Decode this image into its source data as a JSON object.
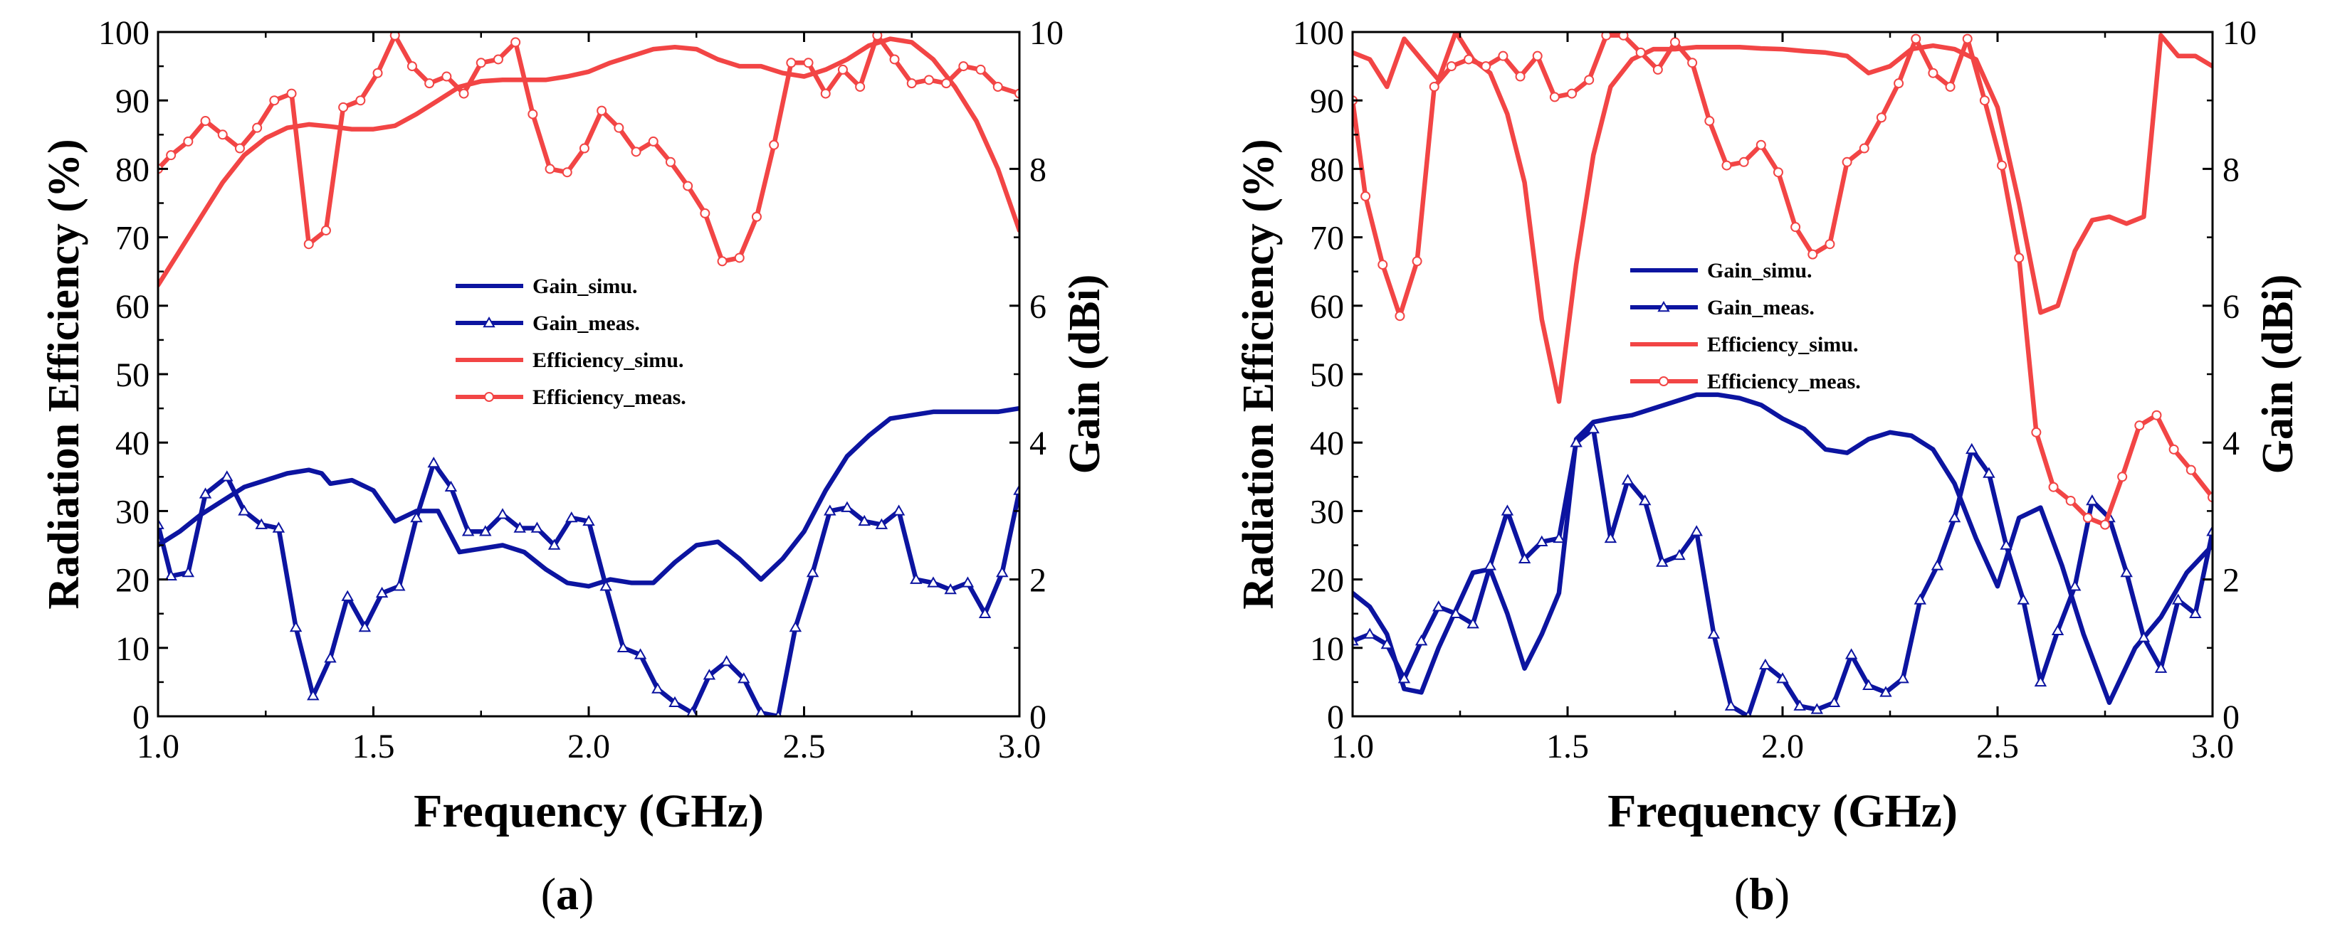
{
  "colors": {
    "gain": "#0c14a0",
    "efficiency": "#f24545",
    "axis": "#000000"
  },
  "chart_data": [
    {
      "panel_label": "a",
      "type": "line",
      "xlabel": "Frequency (GHz)",
      "ylabel_left": "Radiation Efficiency (%)",
      "ylabel_right": "Gain (dBi)",
      "xlim": [
        1.0,
        3.0
      ],
      "ylim_left": [
        0,
        100
      ],
      "ylim_right": [
        0,
        10
      ],
      "xticks": [
        "1.0",
        "1.5",
        "2.0",
        "2.5",
        "3.0"
      ],
      "yticks_left": [
        "0",
        "10",
        "20",
        "30",
        "40",
        "50",
        "60",
        "70",
        "80",
        "90",
        "100"
      ],
      "yticks_right": [
        "0",
        "2",
        "4",
        "6",
        "8",
        "10"
      ],
      "legend": [
        "Gain_simu.",
        "Gain_meas.",
        "Efficiency_simu.",
        "Efficiency_meas."
      ],
      "series": [
        {
          "name": "Gain_simu.",
          "axis": "right",
          "marker": "none",
          "color": "gain",
          "x": [
            1.0,
            1.05,
            1.1,
            1.15,
            1.2,
            1.25,
            1.3,
            1.35,
            1.38,
            1.4,
            1.45,
            1.5,
            1.55,
            1.6,
            1.65,
            1.7,
            1.75,
            1.8,
            1.85,
            1.9,
            1.95,
            2.0,
            2.05,
            2.1,
            2.15,
            2.2,
            2.25,
            2.3,
            2.35,
            2.4,
            2.45,
            2.5,
            2.55,
            2.6,
            2.65,
            2.7,
            2.75,
            2.8,
            2.85,
            2.9,
            2.95,
            3.0
          ],
          "y": [
            2.5,
            2.7,
            2.95,
            3.15,
            3.35,
            3.45,
            3.55,
            3.6,
            3.55,
            3.4,
            3.45,
            3.3,
            2.85,
            3.0,
            3.0,
            2.4,
            2.45,
            2.5,
            2.4,
            2.15,
            1.95,
            1.9,
            2.0,
            1.95,
            1.95,
            2.25,
            2.5,
            2.55,
            2.3,
            2.0,
            2.3,
            2.7,
            3.3,
            3.8,
            4.1,
            4.35,
            4.4,
            4.45,
            4.45,
            4.45,
            4.45,
            4.5
          ]
        },
        {
          "name": "Gain_meas.",
          "axis": "right",
          "marker": "triangle",
          "color": "gain",
          "x": [
            1.0,
            1.03,
            1.07,
            1.11,
            1.16,
            1.2,
            1.24,
            1.28,
            1.32,
            1.36,
            1.4,
            1.44,
            1.48,
            1.52,
            1.56,
            1.6,
            1.64,
            1.68,
            1.72,
            1.76,
            1.8,
            1.84,
            1.88,
            1.92,
            1.96,
            2.0,
            2.04,
            2.08,
            2.12,
            2.16,
            2.2,
            2.24,
            2.28,
            2.32,
            2.36,
            2.4,
            2.44,
            2.48,
            2.52,
            2.56,
            2.6,
            2.64,
            2.68,
            2.72,
            2.76,
            2.8,
            2.84,
            2.88,
            2.92,
            2.96,
            3.0
          ],
          "y": [
            2.8,
            2.05,
            2.1,
            3.25,
            3.5,
            3.0,
            2.8,
            2.75,
            1.3,
            0.3,
            0.85,
            1.75,
            1.3,
            1.8,
            1.9,
            2.9,
            3.7,
            3.35,
            2.7,
            2.7,
            2.95,
            2.75,
            2.75,
            2.5,
            2.9,
            2.85,
            1.9,
            1.0,
            0.9,
            0.4,
            0.2,
            0.05,
            0.6,
            0.8,
            0.55,
            0.05,
            0.0,
            1.3,
            2.1,
            3.0,
            3.05,
            2.85,
            2.8,
            3.0,
            2.0,
            1.95,
            1.85,
            1.95,
            1.5,
            2.1,
            3.3
          ]
        },
        {
          "name": "Efficiency_simu.",
          "axis": "left",
          "marker": "none",
          "color": "efficiency",
          "x": [
            1.0,
            1.05,
            1.1,
            1.15,
            1.2,
            1.25,
            1.3,
            1.35,
            1.4,
            1.45,
            1.5,
            1.55,
            1.6,
            1.65,
            1.7,
            1.75,
            1.8,
            1.85,
            1.9,
            1.95,
            2.0,
            2.05,
            2.1,
            2.15,
            2.2,
            2.25,
            2.3,
            2.35,
            2.4,
            2.45,
            2.5,
            2.55,
            2.6,
            2.65,
            2.7,
            2.75,
            2.8,
            2.85,
            2.9,
            2.95,
            3.0
          ],
          "y": [
            63,
            68,
            73,
            78,
            82,
            84.5,
            86,
            86.5,
            86.2,
            85.8,
            85.8,
            86.3,
            88,
            90,
            92,
            92.8,
            93,
            93,
            93,
            93.5,
            94.2,
            95.5,
            96.5,
            97.5,
            97.8,
            97.5,
            96,
            95,
            95,
            94,
            93.5,
            94.5,
            96,
            98,
            99,
            98.5,
            96,
            92,
            87,
            80,
            71
          ]
        },
        {
          "name": "Efficiency_meas.",
          "axis": "left",
          "marker": "circle",
          "color": "efficiency",
          "x": [
            1.0,
            1.03,
            1.07,
            1.11,
            1.15,
            1.19,
            1.23,
            1.27,
            1.31,
            1.35,
            1.39,
            1.43,
            1.47,
            1.51,
            1.55,
            1.59,
            1.63,
            1.67,
            1.71,
            1.75,
            1.79,
            1.83,
            1.87,
            1.91,
            1.95,
            1.99,
            2.03,
            2.07,
            2.11,
            2.15,
            2.19,
            2.23,
            2.27,
            2.31,
            2.35,
            2.39,
            2.43,
            2.47,
            2.51,
            2.55,
            2.59,
            2.63,
            2.67,
            2.71,
            2.75,
            2.79,
            2.83,
            2.87,
            2.91,
            2.95,
            3.0
          ],
          "y": [
            80,
            82,
            84,
            87,
            85,
            83,
            86,
            90,
            91,
            69,
            71,
            89,
            90,
            94,
            99.5,
            95,
            92.5,
            93.5,
            91,
            95.5,
            96,
            98.5,
            88,
            80,
            79.5,
            83,
            88.5,
            86,
            82.5,
            84,
            81,
            77.5,
            73.5,
            66.5,
            67,
            73,
            83.5,
            95.5,
            95.5,
            91,
            94.5,
            92,
            99.5,
            96,
            92.5,
            93,
            92.5,
            95,
            94.5,
            92,
            91
          ]
        }
      ]
    },
    {
      "panel_label": "b",
      "type": "line",
      "xlabel": "Frequency (GHz)",
      "ylabel_left": "Radiation Efficiency (%)",
      "ylabel_right": "Gain (dBi)",
      "xlim": [
        1.0,
        3.0
      ],
      "ylim_left": [
        0,
        100
      ],
      "ylim_right": [
        0,
        10
      ],
      "xticks": [
        "1.0",
        "1.5",
        "2.0",
        "2.5",
        "3.0"
      ],
      "yticks_left": [
        "0",
        "10",
        "20",
        "30",
        "40",
        "50",
        "60",
        "70",
        "80",
        "90",
        "100"
      ],
      "yticks_right": [
        "0",
        "2",
        "4",
        "6",
        "8",
        "10"
      ],
      "legend": [
        "Gain_simu.",
        "Gain_meas.",
        "Efficiency_simu.",
        "Efficiency_meas."
      ],
      "series": [
        {
          "name": "Gain_simu.",
          "axis": "right",
          "marker": "none",
          "color": "gain",
          "x": [
            1.0,
            1.04,
            1.08,
            1.12,
            1.16,
            1.2,
            1.24,
            1.28,
            1.32,
            1.36,
            1.4,
            1.44,
            1.48,
            1.52,
            1.56,
            1.6,
            1.65,
            1.7,
            1.75,
            1.8,
            1.85,
            1.9,
            1.95,
            2.0,
            2.05,
            2.1,
            2.15,
            2.2,
            2.25,
            2.3,
            2.35,
            2.4,
            2.45,
            2.5,
            2.55,
            2.6,
            2.65,
            2.7,
            2.76,
            2.82,
            2.88,
            2.94,
            3.0
          ],
          "y": [
            1.8,
            1.6,
            1.2,
            0.4,
            0.35,
            1.0,
            1.55,
            2.1,
            2.15,
            1.5,
            0.7,
            1.2,
            1.8,
            4.05,
            4.3,
            4.35,
            4.4,
            4.5,
            4.6,
            4.7,
            4.7,
            4.65,
            4.55,
            4.35,
            4.2,
            3.9,
            3.85,
            4.05,
            4.15,
            4.1,
            3.9,
            3.4,
            2.6,
            1.9,
            2.9,
            3.05,
            2.2,
            1.2,
            0.2,
            1.0,
            1.45,
            2.1,
            2.5
          ]
        },
        {
          "name": "Gain_meas.",
          "axis": "right",
          "marker": "triangle",
          "color": "gain",
          "x": [
            1.0,
            1.04,
            1.08,
            1.12,
            1.16,
            1.2,
            1.24,
            1.28,
            1.32,
            1.36,
            1.4,
            1.44,
            1.48,
            1.52,
            1.56,
            1.6,
            1.64,
            1.68,
            1.72,
            1.76,
            1.8,
            1.84,
            1.88,
            1.92,
            1.96,
            2.0,
            2.04,
            2.08,
            2.12,
            2.16,
            2.2,
            2.24,
            2.28,
            2.32,
            2.36,
            2.4,
            2.44,
            2.48,
            2.52,
            2.56,
            2.6,
            2.64,
            2.68,
            2.72,
            2.76,
            2.8,
            2.84,
            2.88,
            2.92,
            2.96,
            3.0
          ],
          "y": [
            1.1,
            1.2,
            1.05,
            0.55,
            1.1,
            1.6,
            1.5,
            1.35,
            2.2,
            3.0,
            2.3,
            2.55,
            2.6,
            4.0,
            4.2,
            2.6,
            3.45,
            3.15,
            2.25,
            2.35,
            2.7,
            1.2,
            0.15,
            0.0,
            0.75,
            0.55,
            0.15,
            0.1,
            0.2,
            0.9,
            0.45,
            0.35,
            0.55,
            1.7,
            2.2,
            2.9,
            3.9,
            3.55,
            2.5,
            1.7,
            0.5,
            1.25,
            1.9,
            3.15,
            2.9,
            2.1,
            1.15,
            0.7,
            1.7,
            1.5,
            2.7
          ]
        },
        {
          "name": "Efficiency_simu.",
          "axis": "left",
          "marker": "none",
          "color": "efficiency",
          "x": [
            1.0,
            1.04,
            1.08,
            1.12,
            1.16,
            1.2,
            1.24,
            1.28,
            1.32,
            1.36,
            1.4,
            1.44,
            1.48,
            1.52,
            1.56,
            1.6,
            1.65,
            1.7,
            1.75,
            1.8,
            1.85,
            1.9,
            1.95,
            2.0,
            2.05,
            2.1,
            2.15,
            2.2,
            2.25,
            2.3,
            2.35,
            2.4,
            2.45,
            2.5,
            2.55,
            2.6,
            2.64,
            2.68,
            2.72,
            2.76,
            2.8,
            2.84,
            2.88,
            2.92,
            2.96,
            3.0
          ],
          "y": [
            97,
            96,
            92,
            99,
            96,
            93,
            100,
            96,
            94,
            88,
            78,
            58,
            46,
            66,
            82,
            92,
            96,
            97.5,
            97.5,
            97.8,
            97.8,
            97.8,
            97.6,
            97.5,
            97.2,
            97,
            96.5,
            94,
            95,
            97.5,
            98,
            97.5,
            96,
            89,
            75,
            59,
            60,
            68,
            72.5,
            73,
            72,
            73,
            99.5,
            96.5,
            96.5,
            95
          ]
        },
        {
          "name": "Efficiency_meas.",
          "axis": "left",
          "marker": "circle",
          "color": "efficiency",
          "x": [
            1.0,
            1.03,
            1.07,
            1.11,
            1.15,
            1.19,
            1.23,
            1.27,
            1.31,
            1.35,
            1.39,
            1.43,
            1.47,
            1.51,
            1.55,
            1.59,
            1.63,
            1.67,
            1.71,
            1.75,
            1.79,
            1.83,
            1.87,
            1.91,
            1.95,
            1.99,
            2.03,
            2.07,
            2.11,
            2.15,
            2.19,
            2.23,
            2.27,
            2.31,
            2.35,
            2.39,
            2.43,
            2.47,
            2.51,
            2.55,
            2.59,
            2.63,
            2.67,
            2.71,
            2.75,
            2.79,
            2.83,
            2.87,
            2.91,
            2.95,
            3.0
          ],
          "y": [
            90,
            76,
            66,
            58.5,
            66.5,
            92,
            95,
            96,
            95,
            96.5,
            93.5,
            96.5,
            90.5,
            91,
            93,
            99.5,
            99.5,
            97,
            94.5,
            98.5,
            95.5,
            87,
            80.5,
            81,
            83.5,
            79.5,
            71.5,
            67.5,
            69,
            81,
            83,
            87.5,
            92.5,
            99,
            94,
            92,
            99,
            90,
            80.5,
            67,
            41.5,
            33.5,
            31.5,
            29,
            28,
            35,
            42.5,
            44,
            39,
            36,
            32
          ]
        }
      ]
    }
  ]
}
